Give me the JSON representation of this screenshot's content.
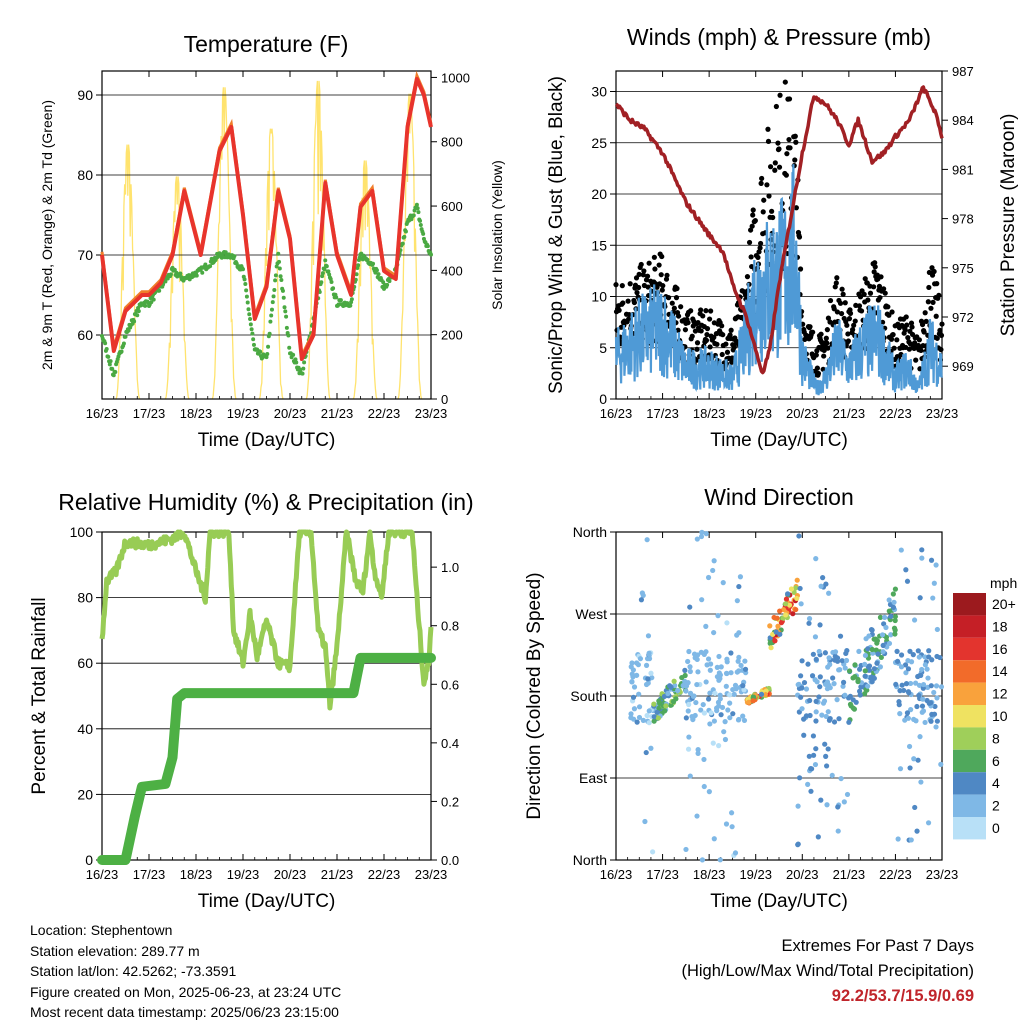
{
  "colors": {
    "temp2m": "#e8342c",
    "temp9m": "#f07d2a",
    "dewpoint": "#4aa942",
    "solar": "#ffe36e",
    "gust": "#000000",
    "wind": "#4f9ad6",
    "pressure": "#a12024",
    "rh": "#98cc55",
    "precip": "#4db044",
    "extremes_text": "#c0252b"
  },
  "xticks": [
    "16/23",
    "17/23",
    "18/23",
    "19/23",
    "20/23",
    "21/23",
    "22/23",
    "23/23"
  ],
  "chart_data": [
    {
      "id": "temperature",
      "type": "line",
      "title": "Temperature (F)",
      "xlabel": "Time (Day/UTC)",
      "ylabel_left": "2m & 9m T (Red, Orange) & 2m Td (Green)",
      "ylabel_right": "Solar Insolation (Yellow)",
      "xlim_days": [
        0,
        7
      ],
      "ylim_left": [
        52,
        93
      ],
      "yticks_left": [
        60,
        70,
        80,
        90
      ],
      "ylim_right": [
        0,
        1020
      ],
      "yticks_right": [
        0,
        200,
        400,
        600,
        800,
        1000
      ],
      "grid": true,
      "series": {
        "temp": [
          [
            0,
            70
          ],
          [
            0.25,
            58
          ],
          [
            0.5,
            63
          ],
          [
            0.85,
            65
          ],
          [
            1.0,
            65
          ],
          [
            1.25,
            66.5
          ],
          [
            1.5,
            70
          ],
          [
            1.75,
            78
          ],
          [
            2.1,
            70
          ],
          [
            2.5,
            83
          ],
          [
            2.75,
            86
          ],
          [
            3.0,
            75
          ],
          [
            3.25,
            62
          ],
          [
            3.5,
            66
          ],
          [
            3.75,
            78
          ],
          [
            4.0,
            72
          ],
          [
            4.25,
            57
          ],
          [
            4.5,
            60
          ],
          [
            4.75,
            79
          ],
          [
            5.0,
            70
          ],
          [
            5.3,
            65
          ],
          [
            5.5,
            76
          ],
          [
            5.75,
            78
          ],
          [
            6.0,
            68
          ],
          [
            6.25,
            67
          ],
          [
            6.5,
            86
          ],
          [
            6.7,
            92
          ],
          [
            6.85,
            90
          ],
          [
            7.0,
            86
          ]
        ],
        "dewpoint": [
          [
            0,
            60
          ],
          [
            0.25,
            55
          ],
          [
            0.5,
            60
          ],
          [
            0.85,
            64
          ],
          [
            1.0,
            64
          ],
          [
            1.25,
            66
          ],
          [
            1.5,
            68
          ],
          [
            1.75,
            67
          ],
          [
            2.1,
            68
          ],
          [
            2.5,
            70
          ],
          [
            2.75,
            70
          ],
          [
            3.0,
            68
          ],
          [
            3.25,
            58
          ],
          [
            3.5,
            57
          ],
          [
            3.75,
            70
          ],
          [
            4.0,
            58
          ],
          [
            4.25,
            55
          ],
          [
            4.5,
            62
          ],
          [
            4.75,
            69
          ],
          [
            5.0,
            64
          ],
          [
            5.3,
            64
          ],
          [
            5.5,
            70
          ],
          [
            5.75,
            69
          ],
          [
            6.0,
            66
          ],
          [
            6.25,
            68
          ],
          [
            6.5,
            74
          ],
          [
            6.7,
            76
          ],
          [
            6.85,
            72
          ],
          [
            7.0,
            70
          ]
        ],
        "solar_peaks": [
          [
            0.55,
            800
          ],
          [
            1.6,
            700
          ],
          [
            2.6,
            980
          ],
          [
            3.6,
            850
          ],
          [
            4.6,
            1000
          ],
          [
            5.6,
            750
          ],
          [
            6.55,
            960
          ]
        ]
      }
    },
    {
      "id": "winds",
      "type": "line",
      "title": "Winds (mph) & Pressure (mb)",
      "xlabel": "Time (Day/UTC)",
      "ylabel_left": "Sonic/Prop Wind & Gust (Blue, Black)",
      "ylabel_right": "Station Pressure (Maroon)",
      "xlim_days": [
        0,
        7
      ],
      "ylim_left": [
        0,
        32
      ],
      "yticks_left": [
        0,
        5,
        10,
        15,
        20,
        25,
        30
      ],
      "ylim_right": [
        967,
        987
      ],
      "yticks_right": [
        969,
        972,
        975,
        978,
        981,
        984,
        987
      ],
      "grid": true,
      "series": {
        "pressure": [
          [
            0,
            985
          ],
          [
            0.3,
            984
          ],
          [
            0.6,
            983.5
          ],
          [
            1.0,
            982
          ],
          [
            1.5,
            979
          ],
          [
            2.0,
            977
          ],
          [
            2.3,
            976
          ],
          [
            2.5,
            974
          ],
          [
            2.8,
            972
          ],
          [
            3.0,
            970
          ],
          [
            3.15,
            968.5
          ],
          [
            3.3,
            970
          ],
          [
            3.5,
            974
          ],
          [
            3.75,
            978
          ],
          [
            4.0,
            982
          ],
          [
            4.25,
            985.5
          ],
          [
            4.5,
            985
          ],
          [
            4.75,
            984
          ],
          [
            5.0,
            982.5
          ],
          [
            5.2,
            984
          ],
          [
            5.5,
            981.5
          ],
          [
            5.75,
            982
          ],
          [
            6.0,
            983
          ],
          [
            6.3,
            984
          ],
          [
            6.6,
            986
          ],
          [
            6.85,
            984.5
          ],
          [
            7.0,
            983
          ]
        ],
        "wind_mean": [
          [
            0,
            4
          ],
          [
            0.5,
            6
          ],
          [
            1.0,
            7
          ],
          [
            1.5,
            3
          ],
          [
            2.0,
            3
          ],
          [
            2.5,
            2
          ],
          [
            2.8,
            6
          ],
          [
            3.0,
            10
          ],
          [
            3.3,
            11
          ],
          [
            3.6,
            12
          ],
          [
            3.85,
            14
          ],
          [
            4.0,
            4
          ],
          [
            4.3,
            1
          ],
          [
            4.5,
            2
          ],
          [
            4.75,
            5
          ],
          [
            5.0,
            3
          ],
          [
            5.3,
            5
          ],
          [
            5.6,
            6
          ],
          [
            6.0,
            2
          ],
          [
            6.25,
            3
          ],
          [
            6.5,
            1
          ],
          [
            6.75,
            5
          ],
          [
            7.0,
            3
          ]
        ],
        "gust_mean": [
          [
            0,
            8
          ],
          [
            0.5,
            9
          ],
          [
            1.0,
            10
          ],
          [
            1.5,
            6
          ],
          [
            2.0,
            6
          ],
          [
            2.5,
            5
          ],
          [
            2.8,
            9
          ],
          [
            3.0,
            15
          ],
          [
            3.3,
            19
          ],
          [
            3.6,
            22
          ],
          [
            3.85,
            20
          ],
          [
            4.0,
            7
          ],
          [
            4.3,
            4
          ],
          [
            4.5,
            5
          ],
          [
            4.75,
            9
          ],
          [
            5.0,
            6
          ],
          [
            5.3,
            8
          ],
          [
            5.6,
            10
          ],
          [
            6.0,
            5
          ],
          [
            6.25,
            6
          ],
          [
            6.5,
            4
          ],
          [
            6.75,
            10
          ],
          [
            7.0,
            6
          ]
        ]
      }
    },
    {
      "id": "humidity",
      "type": "line",
      "title": "Relative Humidity (%) & Precipitation (in)",
      "xlabel": "Time (Day/UTC)",
      "ylabel_left": "Percent & Total Rainfall",
      "xlim_days": [
        0,
        7
      ],
      "ylim_left": [
        0,
        100
      ],
      "yticks_left": [
        0,
        20,
        40,
        60,
        80,
        100
      ],
      "ylim_right": [
        0,
        1.12
      ],
      "yticks_right": [
        "0.0",
        "0.2",
        "0.4",
        "0.6",
        "0.8",
        "1.0"
      ],
      "grid": true,
      "series": {
        "rh": [
          [
            0,
            67
          ],
          [
            0.1,
            85
          ],
          [
            0.3,
            88
          ],
          [
            0.5,
            97
          ],
          [
            1.0,
            96
          ],
          [
            1.5,
            98
          ],
          [
            1.75,
            100
          ],
          [
            2.0,
            88
          ],
          [
            2.2,
            80
          ],
          [
            2.3,
            100
          ],
          [
            2.7,
            100
          ],
          [
            2.8,
            70
          ],
          [
            3.0,
            60
          ],
          [
            3.15,
            75
          ],
          [
            3.3,
            62
          ],
          [
            3.5,
            73
          ],
          [
            3.75,
            60
          ],
          [
            4.0,
            59
          ],
          [
            4.2,
            100
          ],
          [
            4.45,
            100
          ],
          [
            4.6,
            70
          ],
          [
            4.75,
            65
          ],
          [
            4.85,
            47
          ],
          [
            5.0,
            65
          ],
          [
            5.2,
            100
          ],
          [
            5.4,
            85
          ],
          [
            5.55,
            82
          ],
          [
            5.7,
            100
          ],
          [
            5.8,
            88
          ],
          [
            5.95,
            80
          ],
          [
            6.1,
            100
          ],
          [
            6.6,
            100
          ],
          [
            6.7,
            80
          ],
          [
            6.85,
            54
          ],
          [
            6.95,
            60
          ],
          [
            7.0,
            72
          ]
        ],
        "precip": [
          [
            0,
            0
          ],
          [
            0.5,
            0
          ],
          [
            0.7,
            0.15
          ],
          [
            0.85,
            0.25
          ],
          [
            1.35,
            0.26
          ],
          [
            1.5,
            0.35
          ],
          [
            1.6,
            0.55
          ],
          [
            1.75,
            0.57
          ],
          [
            4.6,
            0.57
          ],
          [
            5.35,
            0.57
          ],
          [
            5.5,
            0.69
          ],
          [
            7.0,
            0.69
          ]
        ]
      }
    },
    {
      "id": "wind_direction",
      "type": "scatter",
      "title": "Wind Direction",
      "xlabel": "Time (Day/UTC)",
      "ylabel_left": "Direction (Colored By Speed)",
      "xlim_days": [
        0,
        7
      ],
      "yticks_left": [
        "North",
        "East",
        "South",
        "West",
        "North"
      ],
      "grid": true,
      "legend": {
        "title": "mph",
        "placement": "right",
        "labels": [
          "20+",
          "18",
          "16",
          "14",
          "12",
          "10",
          "8",
          "6",
          "4",
          "2",
          "0"
        ],
        "colors": [
          "#9c1a1e",
          "#c51f26",
          "#e3342e",
          "#f26b2a",
          "#f9a23c",
          "#efe261",
          "#9fcf5a",
          "#4fa85c",
          "#4f88c4",
          "#7fb8e6",
          "#b8e0f7"
        ]
      },
      "clusters": [
        {
          "start": 0.3,
          "end": 0.8,
          "dir_min": 0,
          "dir_max": 360,
          "speed": 2
        },
        {
          "start": 0.8,
          "end": 1.5,
          "dir_min": 150,
          "dir_max": 210,
          "speed": 5
        },
        {
          "start": 1.5,
          "end": 2.8,
          "dir_min": 0,
          "dir_max": 360,
          "speed": 2
        },
        {
          "start": 2.8,
          "end": 3.3,
          "dir_min": 170,
          "dir_max": 190,
          "speed": 11
        },
        {
          "start": 3.3,
          "end": 3.9,
          "dir_min": 230,
          "dir_max": 310,
          "speed": 11
        },
        {
          "start": 3.9,
          "end": 5.0,
          "dir_min": 0,
          "dir_max": 360,
          "speed": 3
        },
        {
          "start": 5.0,
          "end": 6.0,
          "dir_min": 150,
          "dir_max": 300,
          "speed": 4
        },
        {
          "start": 6.0,
          "end": 7.0,
          "dir_min": 0,
          "dir_max": 360,
          "speed": 3
        }
      ]
    }
  ],
  "footer": {
    "location": "Location: Stephentown",
    "elevation": "Station elevation: 289.77 m",
    "latlon": "Station lat/lon: 42.5262; -73.3591",
    "created": "Figure created on Mon, 2025-06-23, at 23:24 UTC",
    "latest": "Most recent data timestamp: 2025/06/23 23:15:00"
  },
  "extremes": {
    "heading": "Extremes For Past 7 Days",
    "subheading": "(High/Low/Max Wind/Total Precipitation)",
    "value": "92.2/53.7/15.9/0.69"
  }
}
